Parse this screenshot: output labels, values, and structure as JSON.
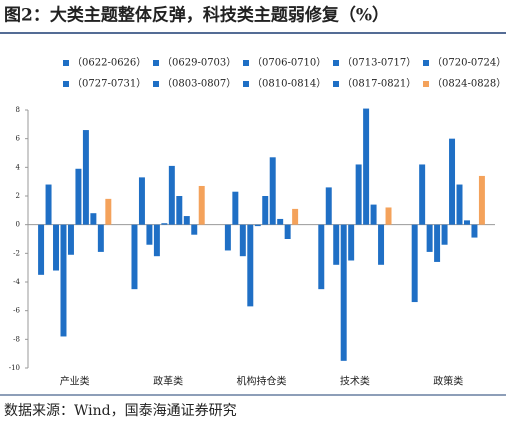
{
  "chart_data": {
    "type": "bar",
    "title": "图2：大类主题整体反弹，科技类主题弱修复（%）",
    "source": "数据来源：Wind，国泰海通证券研究",
    "categories": [
      "产业类",
      "政革类",
      "机构持仓类",
      "技术类",
      "政策类"
    ],
    "series": [
      {
        "name": "（0622-0626）",
        "color": "#1f6fc5",
        "values": [
          -3.5,
          -4.5,
          -1.8,
          -4.5,
          -5.4
        ]
      },
      {
        "name": "（0629-0703）",
        "color": "#1f6fc5",
        "values": [
          2.8,
          3.3,
          2.3,
          2.6,
          4.2
        ]
      },
      {
        "name": "（0706-0710）",
        "color": "#1f6fc5",
        "values": [
          -3.2,
          -1.4,
          -2.2,
          -2.8,
          -1.9
        ]
      },
      {
        "name": "（0713-0717）",
        "color": "#1f6fc5",
        "values": [
          -7.8,
          -2.2,
          -5.7,
          -9.5,
          -2.6
        ]
      },
      {
        "name": "（0720-0724）",
        "color": "#1f6fc5",
        "values": [
          -2.1,
          0.1,
          -0.1,
          -2.5,
          -1.4
        ]
      },
      {
        "name": "（0727-0731）",
        "color": "#1f6fc5",
        "values": [
          3.9,
          4.1,
          2.0,
          4.2,
          6.0
        ]
      },
      {
        "name": "（0803-0807）",
        "color": "#1f6fc5",
        "values": [
          6.6,
          2.0,
          4.7,
          8.1,
          2.8
        ]
      },
      {
        "name": "（0810-0814）",
        "color": "#1f6fc5",
        "values": [
          0.8,
          0.6,
          0.4,
          1.4,
          0.3
        ]
      },
      {
        "name": "（0817-0821）",
        "color": "#1f6fc5",
        "values": [
          -1.9,
          -0.7,
          -1.0,
          -2.8,
          -0.9
        ]
      },
      {
        "name": "（0824-0828）",
        "color": "#f4a25b",
        "values": [
          1.8,
          2.7,
          1.1,
          1.2,
          3.4
        ]
      }
    ],
    "ylim": [
      -10,
      8
    ],
    "yticks": [
      -10,
      -8,
      -6,
      -4,
      -2,
      0,
      2,
      4,
      6,
      8
    ]
  }
}
